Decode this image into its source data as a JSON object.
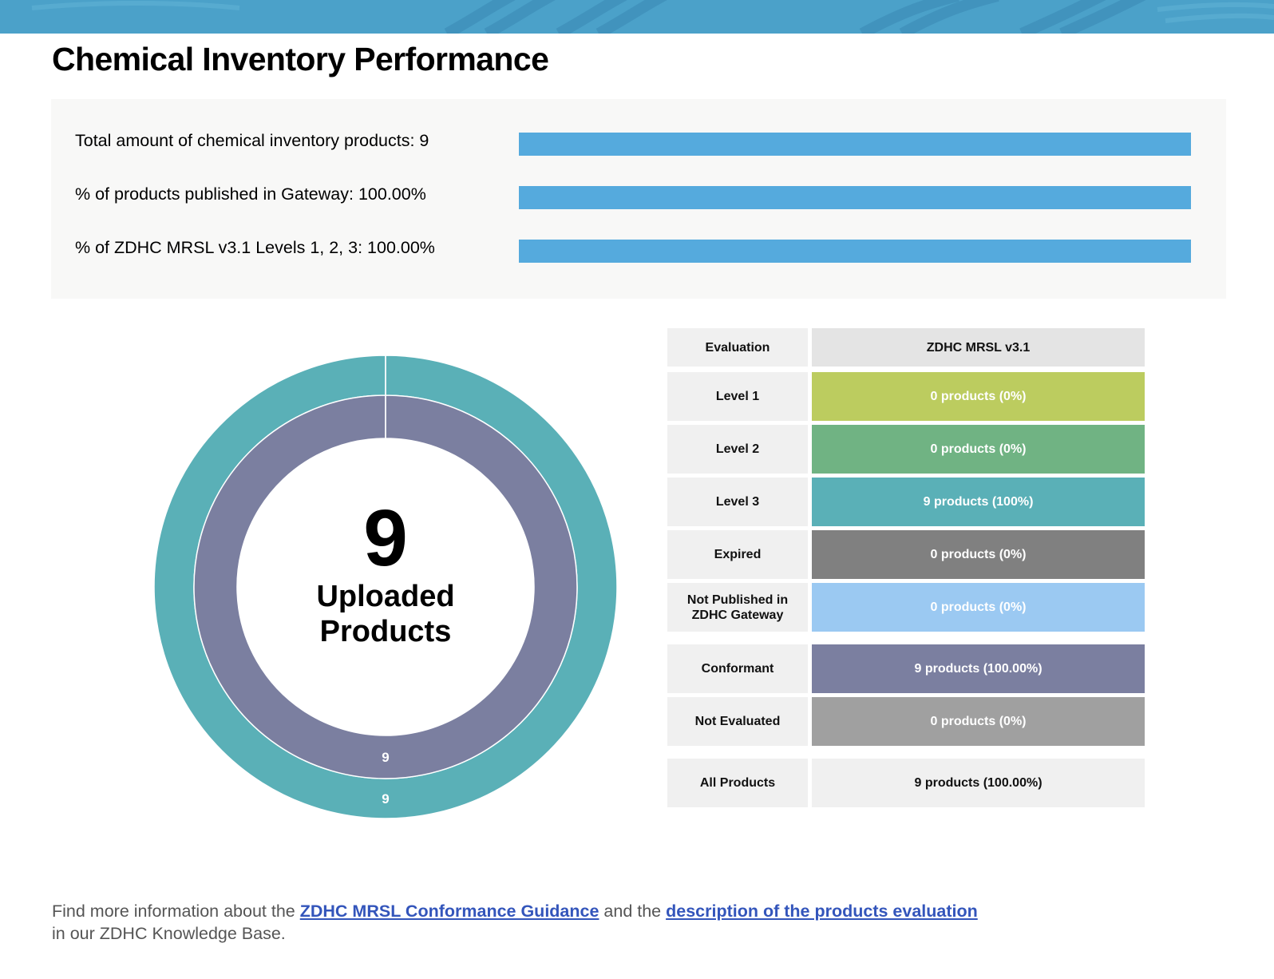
{
  "page": {
    "title": "Chemical Inventory Performance"
  },
  "summary": {
    "metrics": [
      {
        "label": "Total amount of chemical inventory products: 9",
        "fill_percent": 100
      },
      {
        "label": "% of products published in Gateway: 100.00%",
        "fill_percent": 100
      },
      {
        "label": "% of ZDHC MRSL v3.1 Levels 1, 2, 3: 100.00%",
        "fill_percent": 100
      }
    ],
    "bar_color": "#55aadd"
  },
  "chart_data": {
    "type": "donut",
    "center_value": "9",
    "center_label_line1": "Uploaded",
    "center_label_line2": "Products",
    "rings": [
      {
        "ring": "outer",
        "segments": [
          {
            "category": "Level 3",
            "value": 9,
            "color": "#5ab0b7",
            "label": "9"
          }
        ]
      },
      {
        "ring": "inner",
        "segments": [
          {
            "category": "Conformant",
            "value": 9,
            "color": "#7b7fa0",
            "label": "9"
          }
        ]
      }
    ]
  },
  "table": {
    "header": {
      "label": "Evaluation",
      "value": "ZDHC MRSL v3.1"
    },
    "rows": [
      {
        "label": "Level 1",
        "value": "0 products (0%)",
        "color": "#bccc5f"
      },
      {
        "label": "Level 2",
        "value": "0 products (0%)",
        "color": "#70b383"
      },
      {
        "label": "Level 3",
        "value": "9 products (100%)",
        "color": "#5ab0b7"
      },
      {
        "label": "Expired",
        "value": "0 products (0%)",
        "color": "#808080"
      },
      {
        "label": "Not Published in ZDHC Gateway",
        "value": "0 products (0%)",
        "color": "#9bc9f2"
      },
      {
        "label": "Conformant",
        "value": "9 products (100.00%)",
        "color": "#7b7fa0"
      },
      {
        "label": "Not Evaluated",
        "value": "0 products (0%)",
        "color": "#a0a0a0"
      },
      {
        "label": "All Products",
        "value": "9 products (100.00%)",
        "color": "#f0f0f0"
      }
    ]
  },
  "footer": {
    "text_before": "Find more information about the ",
    "link1": "ZDHC MRSL Conformance Guidance",
    "text_middle": " and the ",
    "link2": "description of the products evaluation",
    "text_after": "in our ZDHC Knowledge Base."
  }
}
